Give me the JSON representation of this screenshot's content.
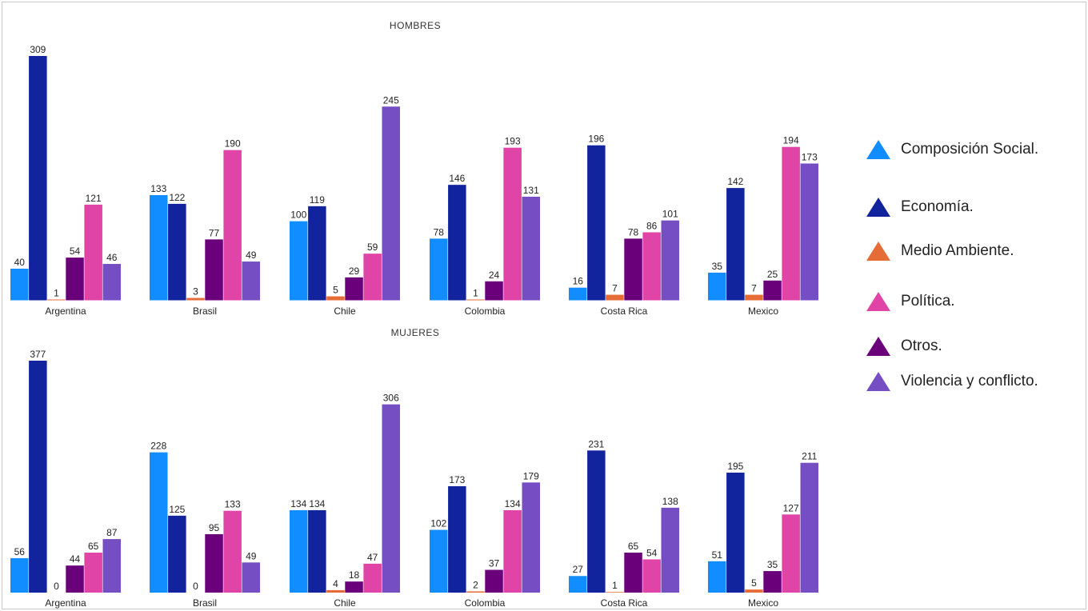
{
  "chart_data": {
    "type": "bar",
    "categories": [
      "Argentina",
      "Brasil",
      "Chile",
      "Colombia",
      "Costa Rica",
      "Mexico"
    ],
    "series": [
      {
        "name": "Composición Social.",
        "color": "#118DFF"
      },
      {
        "name": "Economía.",
        "color": "#12239E"
      },
      {
        "name": "Medio Ambiente.",
        "color": "#E66C37"
      },
      {
        "name": "Política.",
        "color": "#E044A7"
      },
      {
        "name": "Otros.",
        "color": "#6B007B"
      },
      {
        "name": "Violencia y conflicto.",
        "color": "#744EC2"
      }
    ],
    "panels": [
      {
        "title": "HOMBRES",
        "values": {
          "Composición Social.": [
            40,
            133,
            100,
            78,
            16,
            35
          ],
          "Economía.": [
            309,
            122,
            119,
            146,
            196,
            142
          ],
          "Medio Ambiente.": [
            1,
            3,
            5,
            1,
            7,
            7
          ],
          "Otros.": [
            54,
            77,
            29,
            24,
            78,
            25
          ],
          "Política.": [
            121,
            190,
            59,
            193,
            86,
            194
          ],
          "Violencia y conflicto.": [
            46,
            49,
            245,
            131,
            101,
            173
          ]
        }
      },
      {
        "title": "MUJERES",
        "values": {
          "Composición Social.": [
            56,
            228,
            134,
            102,
            27,
            51
          ],
          "Economía.": [
            377,
            125,
            134,
            173,
            231,
            195
          ],
          "Medio Ambiente.": [
            0,
            0,
            4,
            2,
            1,
            5
          ],
          "Otros.": [
            44,
            95,
            18,
            37,
            65,
            35
          ],
          "Política.": [
            65,
            133,
            47,
            134,
            54,
            127
          ],
          "Violencia y conflicto.": [
            87,
            49,
            306,
            179,
            138,
            211
          ]
        }
      }
    ],
    "bar_order": [
      "Composición Social.",
      "Economía.",
      "Medio Ambiente.",
      "Otros.",
      "Política.",
      "Violencia y conflicto."
    ],
    "legend_placement": "right",
    "grid": false
  }
}
